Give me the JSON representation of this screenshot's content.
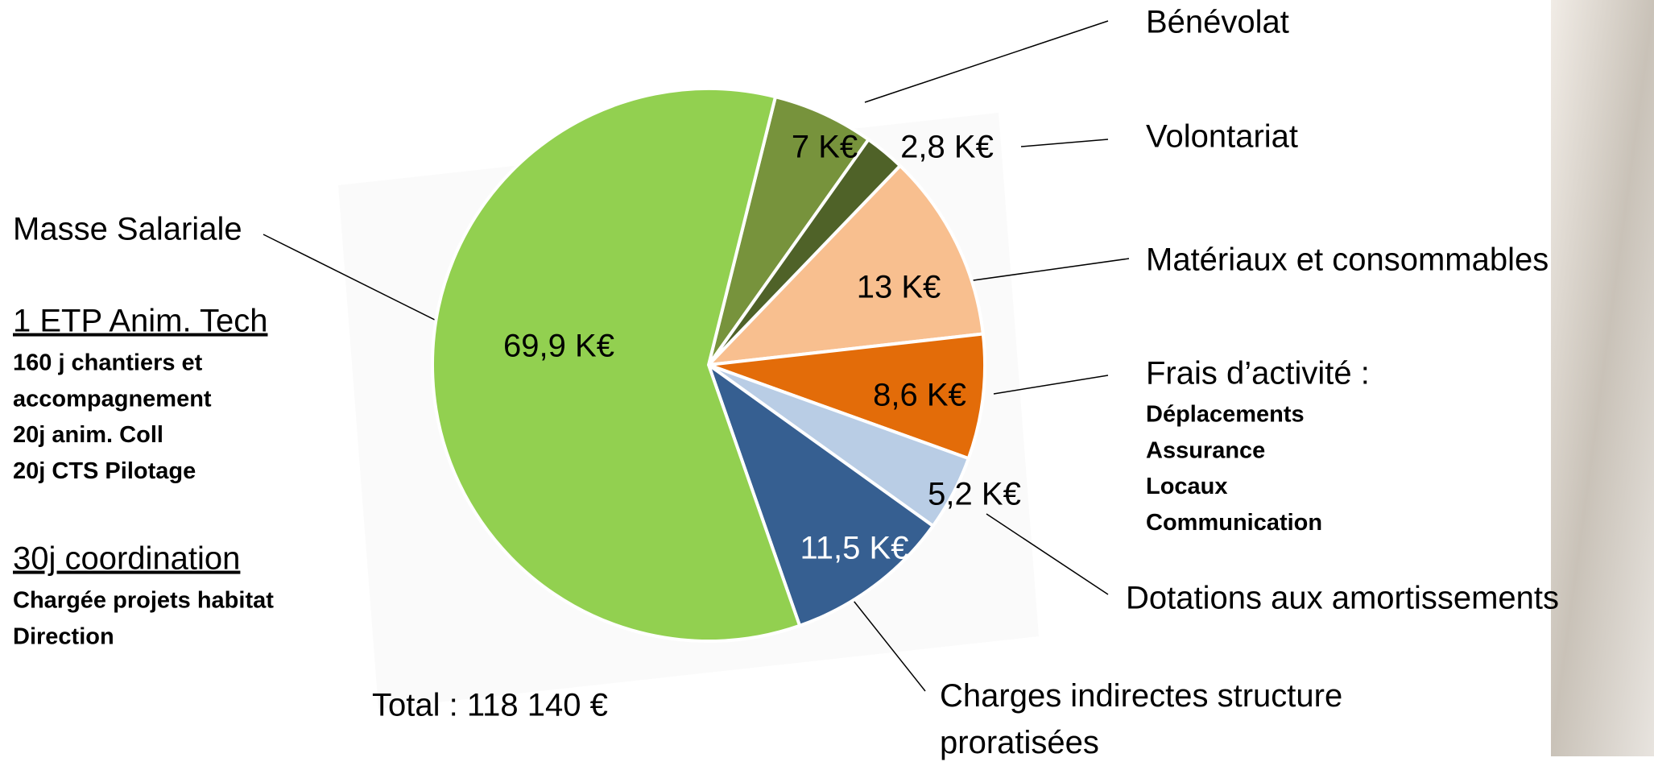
{
  "chart_data": {
    "type": "pie",
    "categories": [
      "Masse Salariale",
      "Bénévolat",
      "Volontariat",
      "Matériaux et consommables",
      "Frais d’activité :",
      "Dotations aux amortissements",
      "Charges indirectes structure proratisées"
    ],
    "values": [
      69.9,
      7,
      2.8,
      13,
      8.6,
      5.2,
      11.5
    ],
    "value_labels": [
      "69,9 K€",
      "7 K€",
      "2,8 K€",
      "13 K€",
      "8,6 K€",
      "5,2 K€",
      "11,5 K€"
    ],
    "colors": [
      "#92d050",
      "#77933c",
      "#4f6228",
      "#f8bf8f",
      "#e36c09",
      "#b9cde5",
      "#365f91"
    ],
    "salary_breakdown": [
      {
        "heading": "1 ETP Anim. Tech",
        "lines": [
          "160 j chantiers  et",
          "accompagnement",
          "20j anim. Coll",
          "20j CTS Pilotage"
        ]
      },
      {
        "heading": "30j coordination",
        "lines": [
          "Chargée projets habitat",
          "Direction"
        ]
      }
    ],
    "activity_details": [
      "Déplacements",
      "Assurance",
      "Locaux",
      "Communication"
    ],
    "total": "Total : 118 140 €"
  }
}
